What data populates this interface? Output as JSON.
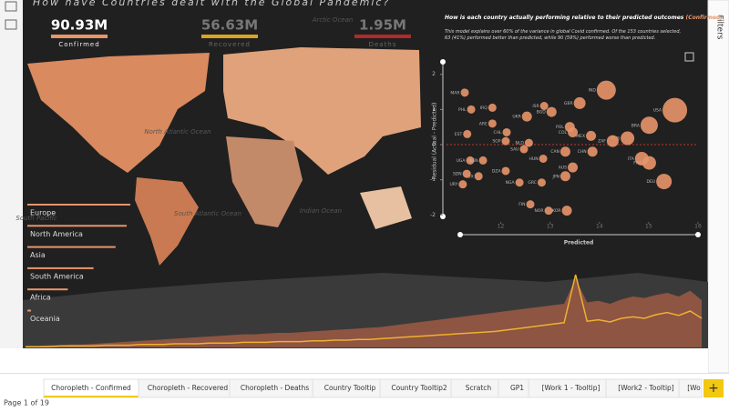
{
  "title": "How have Countries dealt with the Global Pandemic?",
  "kpis": [
    {
      "value": "90.93M",
      "label": "Confirmed",
      "color": "#e8956a"
    },
    {
      "value": "56.63M",
      "label": "Recovered",
      "color": "#d9a520"
    },
    {
      "value": "1.95M",
      "label": "Deaths",
      "color": "#b02a2a"
    }
  ],
  "map_labels": [
    "North Atlantic Ocean",
    "South Atlantic Ocean",
    "Indian Ocean",
    "South Pacific",
    "Arctic Ocean"
  ],
  "chart_data": [
    {
      "type": "scatter",
      "title_parts": [
        "How is each country actually performing relative to their predicted outcomes ",
        "(Confirmed)",
        " ?"
      ],
      "subtitle": "This model explains over 60% of the variance in global Covid confirmed. Of the 153 countries selected, 63 (41%) performed better than predicted, while 90 (59%) performed worse than predicted.",
      "xlabel": "Predicted",
      "ylabel": "Residual (Actual - Predicted)",
      "xlim": [
        10.9,
        16
      ],
      "ylim": [
        -2.2,
        2.2
      ],
      "xticks": [
        12,
        13,
        14,
        15,
        16
      ],
      "yticks": [
        2,
        1,
        0,
        -1,
        -2
      ],
      "color": "#e8956a",
      "labels": [
        "MAR",
        "PHL",
        "IRQ",
        "UKR",
        "BGD",
        "GBR",
        "IND",
        "USA",
        "BRA",
        "RUS",
        "ZAF",
        "MEX",
        "COL",
        "POL",
        "CAN",
        "HUN",
        "ITA",
        "FRA",
        "DEU",
        "JPN",
        "GRC",
        "NGA",
        "DZA",
        "LUX",
        "SDN",
        "URY",
        "FIN",
        "NOR",
        "KOR",
        "UGA",
        "KEN",
        "SGP",
        "EST",
        "CHL",
        "AUS",
        "ISR",
        "NLD",
        "SAU",
        "ARE",
        "CHN"
      ],
      "x": [
        11.27,
        11.4,
        11.83,
        12.53,
        13.03,
        13.6,
        14.14,
        15.53,
        15.01,
        14.57,
        14.27,
        13.83,
        13.46,
        13.4,
        13.31,
        12.86,
        14.86,
        15.01,
        15.31,
        13.31,
        12.83,
        12.38,
        12.1,
        11.55,
        11.31,
        11.23,
        12.6,
        12.97,
        13.34,
        11.38,
        11.64,
        12.1,
        11.32,
        12.12,
        13.46,
        12.88,
        12.57,
        12.47,
        11.83,
        13.86
      ],
      "y": [
        1.48,
        1.0,
        1.05,
        0.8,
        0.93,
        1.18,
        1.55,
        0.98,
        0.55,
        0.18,
        0.1,
        0.25,
        0.35,
        0.5,
        -0.2,
        -0.4,
        -0.4,
        -0.52,
        -1.05,
        -0.9,
        -1.08,
        -1.08,
        -0.75,
        -0.9,
        -0.83,
        -1.13,
        -1.7,
        -1.88,
        -1.88,
        -0.45,
        -0.45,
        0.1,
        0.3,
        0.35,
        -0.65,
        1.1,
        0.05,
        -0.13,
        0.6,
        -0.2
      ],
      "sizes": [
        3,
        3,
        3,
        4,
        4,
        5,
        9,
        12,
        8,
        6,
        5,
        4,
        4,
        4,
        4,
        3,
        6,
        6,
        7,
        4,
        3,
        3,
        3,
        3,
        3,
        3,
        3,
        3,
        4,
        3,
        3,
        3,
        3,
        3,
        4,
        3,
        3,
        3,
        3,
        4
      ]
    },
    {
      "type": "area",
      "series": [
        {
          "color": "#9c5a44",
          "values": [
            2,
            2,
            3,
            3,
            4,
            4,
            5,
            6,
            7,
            8,
            9,
            10,
            11,
            12,
            13,
            14,
            15,
            16,
            17,
            18,
            18,
            19,
            20,
            20,
            21,
            22,
            23,
            24,
            25,
            26,
            27,
            28,
            30,
            32,
            34,
            36,
            38,
            40,
            42,
            44,
            46,
            48,
            50,
            52,
            54,
            56,
            58,
            60,
            95,
            62,
            64,
            60,
            66,
            70,
            68,
            72,
            75,
            70,
            78,
            65
          ]
        },
        {
          "color": "#f0b030",
          "values": [
            1,
            1,
            1,
            2,
            2,
            2,
            2,
            3,
            3,
            3,
            4,
            4,
            4,
            5,
            5,
            5,
            6,
            6,
            6,
            7,
            7,
            7,
            8,
            8,
            8,
            9,
            9,
            10,
            10,
            11,
            11,
            12,
            13,
            14,
            15,
            16,
            17,
            18,
            19,
            20,
            21,
            22,
            24,
            26,
            28,
            30,
            32,
            34,
            100,
            36,
            38,
            35,
            40,
            42,
            40,
            45,
            48,
            44,
            50,
            40
          ]
        }
      ]
    },
    {
      "type": "bar",
      "categories": [
        "Europe",
        "North America",
        "Asia",
        "South America",
        "Africa",
        "Oceania"
      ],
      "values": [
        28,
        27,
        24,
        18,
        11,
        1
      ],
      "color": "#e8956a"
    }
  ],
  "tabs": [
    "Choropleth - Confirmed",
    "Choropleth - Recovered",
    "Choropleth - Deaths",
    "Country Tooltip",
    "Country Tooltip2",
    "Scratch",
    "GP1",
    "[Work 1 - Tooltip]",
    "[Work2 - Tooltip]",
    "[Wo"
  ],
  "page_info": "Page 1 of 19",
  "filters": "Filters"
}
